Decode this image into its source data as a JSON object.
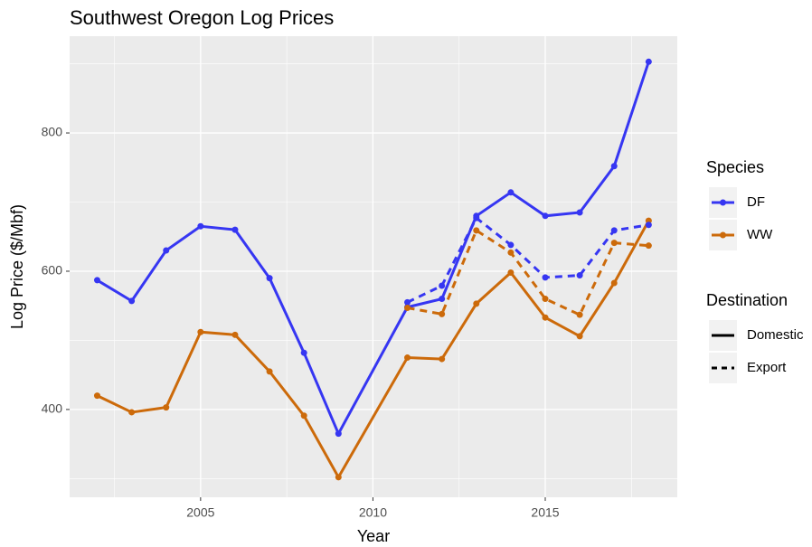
{
  "chart_data": {
    "type": "line",
    "title": "Southwest Oregon Log Prices",
    "x_label": "Year",
    "y_label": "Log Price ($/Mbf)",
    "xlim": [
      2001.2,
      2018.83
    ],
    "ylim": [
      273,
      940
    ],
    "xticks": [
      2005,
      2010,
      2015
    ],
    "yticks": [
      400,
      600,
      800
    ],
    "x_minor_ticks": [
      2002.5,
      2007.5,
      2012.5,
      2017.5
    ],
    "y_minor_ticks": [
      300,
      500,
      700,
      900
    ],
    "grid": true,
    "series": [
      {
        "species": "DF",
        "destination": "Domestic",
        "color": "#3636f2",
        "linetype": "solid",
        "x": [
          2002,
          2003,
          2004,
          2005,
          2006,
          2007,
          2008,
          2009,
          2011,
          2012,
          2013,
          2014,
          2015,
          2016,
          2017,
          2018
        ],
        "values": [
          587,
          557,
          630,
          665,
          660,
          590,
          482,
          365,
          548,
          560,
          680,
          714,
          680,
          685,
          752,
          903
        ]
      },
      {
        "species": "WW",
        "destination": "Domestic",
        "color": "#cc6a0a",
        "linetype": "solid",
        "x": [
          2002,
          2003,
          2004,
          2005,
          2006,
          2007,
          2008,
          2009,
          2011,
          2012,
          2013,
          2014,
          2015,
          2016,
          2017,
          2018
        ],
        "values": [
          420,
          396,
          403,
          512,
          508,
          455,
          391,
          302,
          475,
          473,
          553,
          598,
          533,
          506,
          583,
          673
        ]
      },
      {
        "species": "DF",
        "destination": "Export",
        "color": "#3636f2",
        "linetype": "dashed",
        "x": [
          2011,
          2012,
          2013,
          2014,
          2015,
          2016,
          2017,
          2018
        ],
        "values": [
          555,
          579,
          677,
          638,
          591,
          594,
          659,
          667
        ]
      },
      {
        "species": "WW",
        "destination": "Export",
        "color": "#cc6a0a",
        "linetype": "dashed",
        "x": [
          2011,
          2012,
          2013,
          2014,
          2015,
          2016,
          2017,
          2018
        ],
        "values": [
          547,
          538,
          659,
          627,
          560,
          537,
          641,
          637
        ]
      }
    ],
    "legends": [
      {
        "title": "Species",
        "items": [
          {
            "label": "DF",
            "color": "#3636f2"
          },
          {
            "label": "WW",
            "color": "#cc6a0a"
          }
        ]
      },
      {
        "title": "Destination",
        "items": [
          {
            "label": "Domestic",
            "linetype": "solid"
          },
          {
            "label": "Export",
            "linetype": "dashed"
          }
        ]
      }
    ]
  }
}
